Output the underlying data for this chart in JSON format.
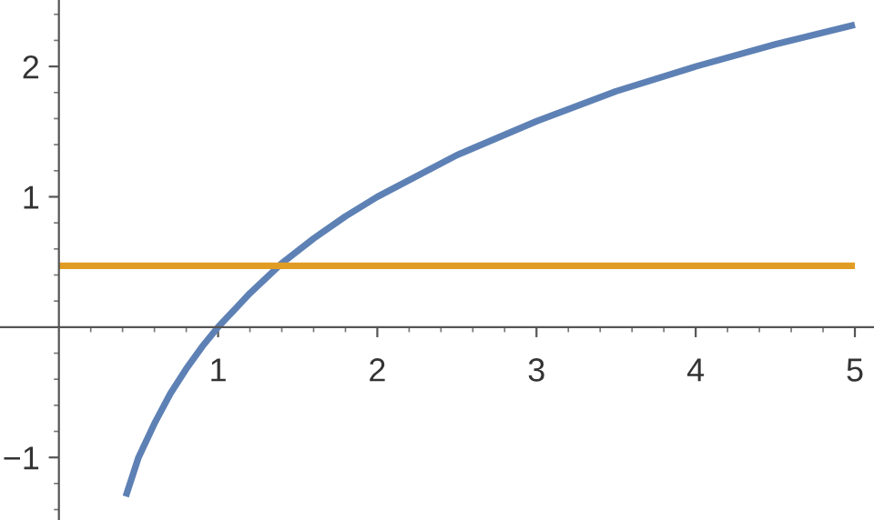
{
  "chart_data": {
    "type": "line",
    "x": [
      0.42,
      0.5,
      0.6,
      0.7,
      0.8,
      0.9,
      1,
      1.2,
      1.4,
      1.6,
      1.8,
      2,
      2.5,
      3,
      3.5,
      4,
      4.5,
      5
    ],
    "series": [
      {
        "color": "#5e81b5",
        "values": [
          -1.3,
          -1.0,
          -0.74,
          -0.51,
          -0.32,
          -0.15,
          0,
          0.26,
          0.49,
          0.68,
          0.85,
          1.0,
          1.32,
          1.58,
          1.81,
          2.0,
          2.17,
          2.32
        ]
      },
      {
        "color": "#e19c24",
        "x": [
          0,
          5
        ],
        "values": [
          0.47,
          0.47
        ]
      }
    ],
    "xlim": [
      -0.37,
      5.12
    ],
    "ylim": [
      -1.48,
      2.51
    ],
    "xticks": [
      1,
      2,
      3,
      4,
      5
    ],
    "yticks": [
      -1,
      1,
      2
    ],
    "grid": false,
    "legend": false,
    "marker": "none",
    "line_style": "solid"
  }
}
